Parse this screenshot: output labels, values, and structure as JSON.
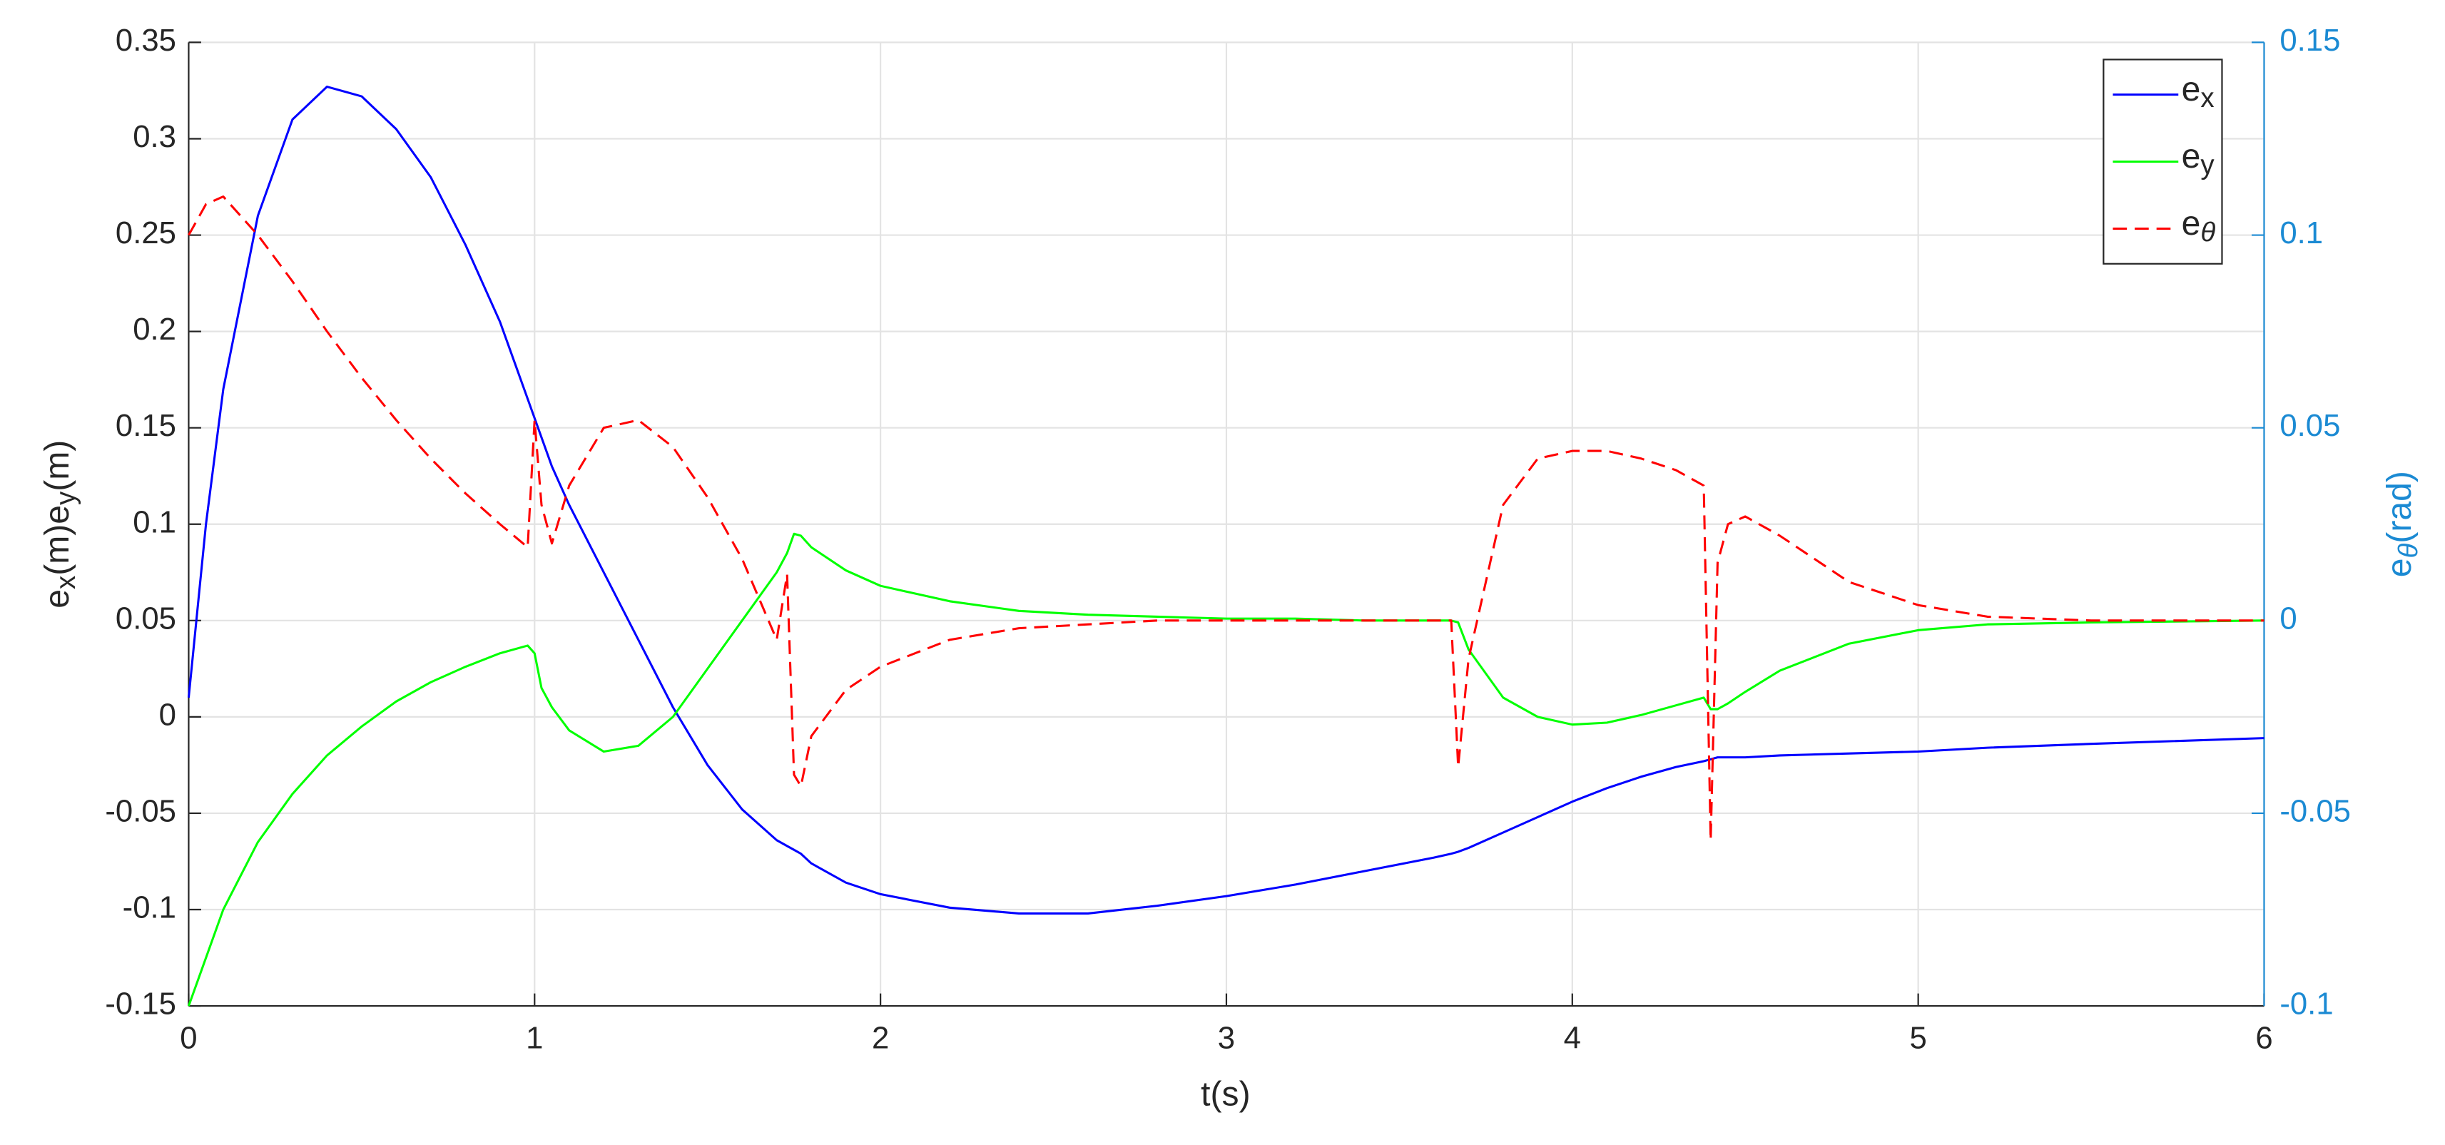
{
  "chart_data": {
    "type": "line",
    "xlabel": "t(s)",
    "ylabel": "e_{x}(m)e_{y}(m)",
    "y2label": "e_{θ}(rad)",
    "x": [
      0,
      0.05,
      0.1,
      0.2,
      0.3,
      0.4,
      0.5,
      0.6,
      0.7,
      0.8,
      0.9,
      0.98,
      1.0,
      1.02,
      1.05,
      1.1,
      1.2,
      1.3,
      1.4,
      1.5,
      1.6,
      1.7,
      1.73,
      1.75,
      1.77,
      1.8,
      1.9,
      2.0,
      2.2,
      2.4,
      2.6,
      2.8,
      3.0,
      3.2,
      3.4,
      3.6,
      3.65,
      3.67,
      3.7,
      3.8,
      3.9,
      4.0,
      4.1,
      4.2,
      4.3,
      4.38,
      4.4,
      4.42,
      4.45,
      4.5,
      4.6,
      4.8,
      5.0,
      5.2,
      5.5,
      6.0
    ],
    "series": [
      {
        "name": "e_{x}",
        "color": "#0000ff",
        "dash": false,
        "values": [
          0.01,
          0.1,
          0.17,
          0.26,
          0.31,
          0.327,
          0.322,
          0.305,
          0.28,
          0.245,
          0.205,
          0.165,
          0.155,
          0.145,
          0.13,
          0.11,
          0.075,
          0.04,
          0.005,
          -0.025,
          -0.048,
          -0.064,
          -0.067,
          -0.069,
          -0.071,
          -0.076,
          -0.086,
          -0.092,
          -0.099,
          -0.102,
          -0.102,
          -0.098,
          -0.093,
          -0.087,
          -0.08,
          -0.073,
          -0.071,
          -0.07,
          -0.068,
          -0.06,
          -0.052,
          -0.044,
          -0.037,
          -0.031,
          -0.026,
          -0.023,
          -0.022,
          -0.021,
          -0.021,
          -0.021,
          -0.02,
          -0.019,
          -0.018,
          -0.016,
          -0.014,
          -0.011
        ]
      },
      {
        "name": "e_{y}",
        "color": "#00ff00",
        "dash": false,
        "values": [
          -0.15,
          -0.125,
          -0.1,
          -0.065,
          -0.04,
          -0.02,
          -0.005,
          0.008,
          0.018,
          0.026,
          0.033,
          0.037,
          0.033,
          0.015,
          0.005,
          -0.007,
          -0.018,
          -0.015,
          0,
          0.025,
          0.05,
          0.075,
          0.085,
          0.095,
          0.094,
          0.088,
          0.076,
          0.068,
          0.06,
          0.055,
          0.053,
          0.052,
          0.051,
          0.051,
          0.05,
          0.05,
          0.05,
          0.049,
          0.035,
          0.01,
          0,
          -0.004,
          -0.003,
          0.001,
          0.006,
          0.01,
          0.004,
          0.004,
          0.007,
          0.013,
          0.024,
          0.038,
          0.045,
          0.048,
          0.049,
          0.05
        ]
      },
      {
        "name": "e_{θ}",
        "color": "#ff0000",
        "dash": true,
        "axis": "y2",
        "values": [
          0.1,
          0.108,
          0.11,
          0.1,
          0.088,
          0.075,
          0.063,
          0.052,
          0.042,
          0.033,
          0.025,
          0.019,
          0.052,
          0.03,
          0.02,
          0.035,
          0.05,
          0.052,
          0.045,
          0.032,
          0.016,
          -0.005,
          0.012,
          -0.04,
          -0.043,
          -0.03,
          -0.018,
          -0.012,
          -0.005,
          -0.002,
          -0.001,
          0,
          0,
          0,
          0,
          0,
          0,
          -0.038,
          -0.01,
          0.03,
          0.042,
          0.044,
          0.044,
          0.042,
          0.039,
          0.035,
          -0.057,
          0.015,
          0.025,
          0.027,
          0.022,
          0.01,
          0.004,
          0.001,
          0,
          0
        ]
      }
    ],
    "xlim": [
      0,
      6
    ],
    "xticks": [
      0,
      1,
      2,
      3,
      4,
      5,
      6
    ],
    "ylim": [
      -0.15,
      0.35
    ],
    "yticks": [
      -0.15,
      -0.1,
      -0.05,
      0,
      0.05,
      0.1,
      0.15,
      0.2,
      0.25,
      0.3,
      0.35
    ],
    "y2lim": [
      -0.1,
      0.15
    ],
    "y2ticks": [
      -0.1,
      -0.05,
      0,
      0.05,
      0.1,
      0.15
    ],
    "y2color": "#1b8ad3",
    "grid": true,
    "legend": "northeast"
  }
}
